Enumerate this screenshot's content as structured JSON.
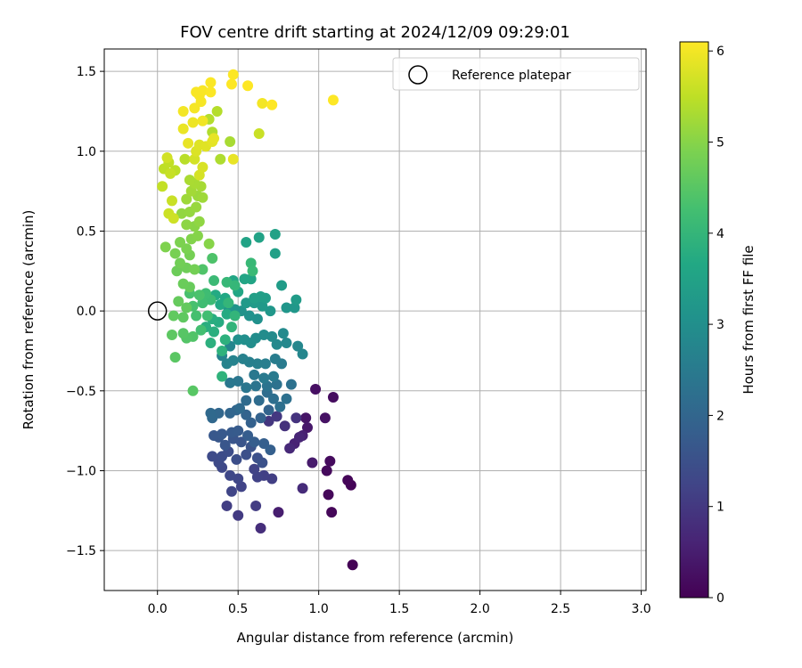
{
  "chart_data": {
    "type": "scatter",
    "title": "FOV centre drift starting at 2024/12/09 09:29:01",
    "xlabel": "Angular distance from reference (arcmin)",
    "ylabel": "Rotation from reference (arcmin)",
    "xlim": [
      -0.33,
      3.03
    ],
    "ylim": [
      -1.75,
      1.64
    ],
    "xticks": [
      0.0,
      0.5,
      1.0,
      1.5,
      2.0,
      2.5,
      3.0
    ],
    "xtick_labels": [
      "0.0",
      "0.5",
      "1.0",
      "1.5",
      "2.0",
      "2.5",
      "3.0"
    ],
    "yticks": [
      -1.5,
      -1.0,
      -0.5,
      0.0,
      0.5,
      1.0,
      1.5
    ],
    "ytick_labels": [
      "−1.5",
      "−1.0",
      "−0.5",
      "0.0",
      "0.5",
      "1.0",
      "1.5"
    ],
    "grid": true,
    "legend": {
      "position": "top-right",
      "entries": [
        "Reference platepar"
      ]
    },
    "reference_point": {
      "x": 0.0,
      "y": 0.0,
      "label": "Reference platepar"
    },
    "colorbar": {
      "label": "Hours from first FF file",
      "range": [
        0,
        6.1
      ],
      "ticks": [
        0,
        1,
        2,
        3,
        4,
        5,
        6
      ],
      "tick_labels": [
        "0",
        "1",
        "2",
        "3",
        "4",
        "5",
        "6"
      ],
      "colormap": "viridis"
    },
    "points": [
      {
        "x": 1.21,
        "y": -1.59,
        "c": 0.02
      },
      {
        "x": 1.2,
        "y": -1.09,
        "c": 0.05
      },
      {
        "x": 1.18,
        "y": -1.06,
        "c": 0.08
      },
      {
        "x": 1.08,
        "y": -1.26,
        "c": 0.1
      },
      {
        "x": 1.06,
        "y": -1.15,
        "c": 0.12
      },
      {
        "x": 1.05,
        "y": -1.0,
        "c": 0.15
      },
      {
        "x": 1.07,
        "y": -0.94,
        "c": 0.18
      },
      {
        "x": 1.09,
        "y": -0.54,
        "c": 0.2
      },
      {
        "x": 0.98,
        "y": -0.49,
        "c": 0.25
      },
      {
        "x": 1.04,
        "y": -0.67,
        "c": 0.3
      },
      {
        "x": 0.92,
        "y": -0.67,
        "c": 0.35
      },
      {
        "x": 0.93,
        "y": -0.73,
        "c": 0.4
      },
      {
        "x": 0.96,
        "y": -0.95,
        "c": 0.45
      },
      {
        "x": 0.75,
        "y": -1.26,
        "c": 0.5
      },
      {
        "x": 0.9,
        "y": -0.78,
        "c": 0.55
      },
      {
        "x": 0.85,
        "y": -0.83,
        "c": 0.6
      },
      {
        "x": 0.88,
        "y": -0.79,
        "c": 0.65
      },
      {
        "x": 0.82,
        "y": -0.86,
        "c": 0.7
      },
      {
        "x": 0.9,
        "y": -1.11,
        "c": 0.75
      },
      {
        "x": 0.64,
        "y": -1.36,
        "c": 0.8
      },
      {
        "x": 0.79,
        "y": -0.72,
        "c": 0.85
      },
      {
        "x": 0.86,
        "y": -0.67,
        "c": 0.9
      },
      {
        "x": 0.69,
        "y": -0.69,
        "c": 0.95
      },
      {
        "x": 0.74,
        "y": -0.66,
        "c": 1.0
      },
      {
        "x": 0.5,
        "y": -1.28,
        "c": 1.05
      },
      {
        "x": 0.61,
        "y": -1.22,
        "c": 1.08
      },
      {
        "x": 0.43,
        "y": -1.22,
        "c": 1.1
      },
      {
        "x": 0.71,
        "y": -1.05,
        "c": 1.12
      },
      {
        "x": 0.66,
        "y": -1.03,
        "c": 1.15
      },
      {
        "x": 0.62,
        "y": -1.04,
        "c": 1.18
      },
      {
        "x": 0.6,
        "y": -0.99,
        "c": 1.2
      },
      {
        "x": 0.52,
        "y": -1.1,
        "c": 1.22
      },
      {
        "x": 0.46,
        "y": -1.13,
        "c": 1.25
      },
      {
        "x": 0.5,
        "y": -1.05,
        "c": 1.28
      },
      {
        "x": 0.45,
        "y": -1.03,
        "c": 1.3
      },
      {
        "x": 0.4,
        "y": -0.98,
        "c": 1.32
      },
      {
        "x": 0.38,
        "y": -0.95,
        "c": 1.35
      },
      {
        "x": 0.34,
        "y": -0.91,
        "c": 1.38
      },
      {
        "x": 0.4,
        "y": -0.91,
        "c": 1.4
      },
      {
        "x": 0.44,
        "y": -0.88,
        "c": 1.42
      },
      {
        "x": 0.49,
        "y": -0.93,
        "c": 1.45
      },
      {
        "x": 0.55,
        "y": -0.9,
        "c": 1.48
      },
      {
        "x": 0.62,
        "y": -0.92,
        "c": 1.5
      },
      {
        "x": 0.65,
        "y": -0.95,
        "c": 1.52
      },
      {
        "x": 0.58,
        "y": -0.85,
        "c": 1.55
      },
      {
        "x": 0.52,
        "y": -0.82,
        "c": 1.58
      },
      {
        "x": 0.47,
        "y": -0.8,
        "c": 1.6
      },
      {
        "x": 0.42,
        "y": -0.84,
        "c": 1.62
      },
      {
        "x": 0.38,
        "y": -0.79,
        "c": 1.65
      },
      {
        "x": 0.35,
        "y": -0.78,
        "c": 1.68
      },
      {
        "x": 0.4,
        "y": -0.77,
        "c": 1.7
      },
      {
        "x": 0.46,
        "y": -0.76,
        "c": 1.72
      },
      {
        "x": 0.5,
        "y": -0.75,
        "c": 1.75
      },
      {
        "x": 0.56,
        "y": -0.78,
        "c": 1.78
      },
      {
        "x": 0.6,
        "y": -0.82,
        "c": 1.8
      },
      {
        "x": 0.66,
        "y": -0.83,
        "c": 1.82
      },
      {
        "x": 0.7,
        "y": -0.87,
        "c": 1.85
      },
      {
        "x": 0.58,
        "y": -0.7,
        "c": 1.88
      },
      {
        "x": 0.64,
        "y": -0.67,
        "c": 1.9
      },
      {
        "x": 0.69,
        "y": -0.62,
        "c": 1.92
      },
      {
        "x": 0.55,
        "y": -0.65,
        "c": 1.95
      },
      {
        "x": 0.49,
        "y": -0.62,
        "c": 1.98
      },
      {
        "x": 0.45,
        "y": -0.64,
        "c": 2.0
      },
      {
        "x": 0.38,
        "y": -0.64,
        "c": 2.02
      },
      {
        "x": 0.34,
        "y": -0.67,
        "c": 2.05
      },
      {
        "x": 0.33,
        "y": -0.64,
        "c": 2.08
      },
      {
        "x": 0.51,
        "y": -0.61,
        "c": 2.1
      },
      {
        "x": 0.55,
        "y": -0.56,
        "c": 2.12
      },
      {
        "x": 0.63,
        "y": -0.56,
        "c": 2.15
      },
      {
        "x": 0.68,
        "y": -0.51,
        "c": 2.18
      },
      {
        "x": 0.72,
        "y": -0.55,
        "c": 2.2
      },
      {
        "x": 0.76,
        "y": -0.6,
        "c": 2.22
      },
      {
        "x": 0.8,
        "y": -0.55,
        "c": 2.25
      },
      {
        "x": 0.83,
        "y": -0.46,
        "c": 2.28
      },
      {
        "x": 0.74,
        "y": -0.46,
        "c": 2.3
      },
      {
        "x": 0.68,
        "y": -0.47,
        "c": 2.32
      },
      {
        "x": 0.61,
        "y": -0.47,
        "c": 2.35
      },
      {
        "x": 0.55,
        "y": -0.48,
        "c": 2.38
      },
      {
        "x": 0.5,
        "y": -0.44,
        "c": 2.4
      },
      {
        "x": 0.45,
        "y": -0.45,
        "c": 2.42
      },
      {
        "x": 0.6,
        "y": -0.4,
        "c": 2.45
      },
      {
        "x": 0.66,
        "y": -0.42,
        "c": 2.48
      },
      {
        "x": 0.72,
        "y": -0.41,
        "c": 2.5
      },
      {
        "x": 0.77,
        "y": -0.33,
        "c": 2.52
      },
      {
        "x": 0.73,
        "y": -0.3,
        "c": 2.55
      },
      {
        "x": 0.67,
        "y": -0.33,
        "c": 2.58
      },
      {
        "x": 0.62,
        "y": -0.33,
        "c": 2.6
      },
      {
        "x": 0.57,
        "y": -0.32,
        "c": 2.62
      },
      {
        "x": 0.53,
        "y": -0.3,
        "c": 2.65
      },
      {
        "x": 0.47,
        "y": -0.31,
        "c": 2.68
      },
      {
        "x": 0.43,
        "y": -0.33,
        "c": 2.7
      },
      {
        "x": 0.4,
        "y": -0.28,
        "c": 2.72
      },
      {
        "x": 0.45,
        "y": -0.22,
        "c": 2.75
      },
      {
        "x": 0.9,
        "y": -0.27,
        "c": 2.78
      },
      {
        "x": 0.87,
        "y": -0.22,
        "c": 2.8
      },
      {
        "x": 0.8,
        "y": -0.2,
        "c": 2.82
      },
      {
        "x": 0.74,
        "y": -0.21,
        "c": 2.85
      },
      {
        "x": 0.78,
        "y": -0.14,
        "c": 2.88
      },
      {
        "x": 0.71,
        "y": -0.16,
        "c": 2.9
      },
      {
        "x": 0.66,
        "y": -0.15,
        "c": 2.92
      },
      {
        "x": 0.61,
        "y": -0.17,
        "c": 2.95
      },
      {
        "x": 0.58,
        "y": -0.2,
        "c": 2.98
      },
      {
        "x": 0.54,
        "y": -0.18,
        "c": 3.0
      },
      {
        "x": 0.5,
        "y": -0.18,
        "c": 3.02
      },
      {
        "x": 0.62,
        "y": -0.05,
        "c": 3.05
      },
      {
        "x": 0.57,
        "y": -0.03,
        "c": 3.08
      },
      {
        "x": 0.52,
        "y": 0.0,
        "c": 3.1
      },
      {
        "x": 0.48,
        "y": 0.01,
        "c": 3.12
      },
      {
        "x": 0.44,
        "y": 0.0,
        "c": 3.15
      },
      {
        "x": 0.8,
        "y": 0.02,
        "c": 3.18
      },
      {
        "x": 0.85,
        "y": 0.02,
        "c": 3.2
      },
      {
        "x": 0.7,
        "y": 0.0,
        "c": 3.22
      },
      {
        "x": 0.65,
        "y": 0.03,
        "c": 3.25
      },
      {
        "x": 0.6,
        "y": 0.05,
        "c": 3.28
      },
      {
        "x": 0.55,
        "y": 0.05,
        "c": 3.3
      },
      {
        "x": 0.86,
        "y": 0.07,
        "c": 3.32
      },
      {
        "x": 0.77,
        "y": 0.16,
        "c": 3.35
      },
      {
        "x": 0.67,
        "y": 0.08,
        "c": 3.38
      },
      {
        "x": 0.64,
        "y": 0.09,
        "c": 3.4
      },
      {
        "x": 0.6,
        "y": 0.08,
        "c": 3.42
      },
      {
        "x": 0.73,
        "y": 0.36,
        "c": 3.45
      },
      {
        "x": 0.73,
        "y": 0.48,
        "c": 3.48
      },
      {
        "x": 0.63,
        "y": 0.46,
        "c": 3.5
      },
      {
        "x": 0.55,
        "y": 0.43,
        "c": 3.52
      },
      {
        "x": 0.58,
        "y": 0.2,
        "c": 3.55
      },
      {
        "x": 0.54,
        "y": 0.2,
        "c": 3.58
      },
      {
        "x": 0.5,
        "y": 0.12,
        "c": 3.6
      },
      {
        "x": 0.47,
        "y": 0.19,
        "c": 3.62
      },
      {
        "x": 0.42,
        "y": 0.08,
        "c": 3.65
      },
      {
        "x": 0.39,
        "y": 0.04,
        "c": 3.68
      },
      {
        "x": 0.36,
        "y": 0.1,
        "c": 3.7
      },
      {
        "x": 0.43,
        "y": -0.02,
        "c": 3.72
      },
      {
        "x": 0.38,
        "y": -0.07,
        "c": 3.75
      },
      {
        "x": 0.34,
        "y": -0.05,
        "c": 3.78
      },
      {
        "x": 0.3,
        "y": -0.1,
        "c": 3.8
      },
      {
        "x": 0.35,
        "y": -0.13,
        "c": 3.82
      },
      {
        "x": 0.33,
        "y": -0.2,
        "c": 3.85
      },
      {
        "x": 0.42,
        "y": -0.18,
        "c": 3.88
      },
      {
        "x": 0.4,
        "y": -0.25,
        "c": 3.9
      },
      {
        "x": 0.4,
        "y": -0.41,
        "c": 3.92
      },
      {
        "x": 0.46,
        "y": -0.1,
        "c": 3.95
      },
      {
        "x": 0.48,
        "y": -0.03,
        "c": 3.98
      },
      {
        "x": 0.44,
        "y": 0.05,
        "c": 4.0
      },
      {
        "x": 0.48,
        "y": 0.16,
        "c": 4.02
      },
      {
        "x": 0.43,
        "y": 0.18,
        "c": 4.05
      },
      {
        "x": 0.58,
        "y": 0.3,
        "c": 4.08
      },
      {
        "x": 0.59,
        "y": 0.25,
        "c": 4.1
      },
      {
        "x": 0.35,
        "y": 0.19,
        "c": 4.12
      },
      {
        "x": 0.33,
        "y": 0.07,
        "c": 4.15
      },
      {
        "x": 0.3,
        "y": 0.11,
        "c": 4.18
      },
      {
        "x": 0.28,
        "y": 0.05,
        "c": 4.2
      },
      {
        "x": 0.31,
        "y": -0.03,
        "c": 4.22
      },
      {
        "x": 0.27,
        "y": -0.12,
        "c": 4.25
      },
      {
        "x": 0.24,
        "y": -0.03,
        "c": 4.28
      },
      {
        "x": 0.22,
        "y": 0.03,
        "c": 4.3
      },
      {
        "x": 0.2,
        "y": 0.11,
        "c": 4.32
      },
      {
        "x": 0.26,
        "y": 0.1,
        "c": 4.35
      },
      {
        "x": 0.34,
        "y": 0.33,
        "c": 4.38
      },
      {
        "x": 0.28,
        "y": 0.26,
        "c": 4.4
      },
      {
        "x": 0.22,
        "y": -0.16,
        "c": 4.42
      },
      {
        "x": 0.18,
        "y": -0.17,
        "c": 4.45
      },
      {
        "x": 0.16,
        "y": -0.14,
        "c": 4.48
      },
      {
        "x": 0.22,
        "y": -0.5,
        "c": 4.5
      },
      {
        "x": 0.11,
        "y": -0.29,
        "c": 4.52
      },
      {
        "x": 0.09,
        "y": -0.15,
        "c": 4.55
      },
      {
        "x": 0.16,
        "y": -0.04,
        "c": 4.58
      },
      {
        "x": 0.1,
        "y": -0.03,
        "c": 4.6
      },
      {
        "x": 0.18,
        "y": 0.02,
        "c": 4.62
      },
      {
        "x": 0.13,
        "y": 0.06,
        "c": 4.65
      },
      {
        "x": 0.2,
        "y": 0.15,
        "c": 4.68
      },
      {
        "x": 0.16,
        "y": 0.17,
        "c": 4.7
      },
      {
        "x": 0.12,
        "y": 0.25,
        "c": 4.72
      },
      {
        "x": 0.18,
        "y": 0.27,
        "c": 4.75
      },
      {
        "x": 0.14,
        "y": 0.3,
        "c": 4.78
      },
      {
        "x": 0.23,
        "y": 0.26,
        "c": 4.8
      },
      {
        "x": 0.2,
        "y": 0.35,
        "c": 4.82
      },
      {
        "x": 0.11,
        "y": 0.36,
        "c": 4.85
      },
      {
        "x": 0.18,
        "y": 0.39,
        "c": 4.88
      },
      {
        "x": 0.14,
        "y": 0.43,
        "c": 4.9
      },
      {
        "x": 0.05,
        "y": 0.4,
        "c": 4.92
      },
      {
        "x": 0.21,
        "y": 0.45,
        "c": 4.95
      },
      {
        "x": 0.25,
        "y": 0.47,
        "c": 4.98
      },
      {
        "x": 0.32,
        "y": 0.42,
        "c": 5.0
      },
      {
        "x": 0.23,
        "y": 0.53,
        "c": 5.02
      },
      {
        "x": 0.18,
        "y": 0.54,
        "c": 5.05
      },
      {
        "x": 0.26,
        "y": 0.56,
        "c": 5.08
      },
      {
        "x": 0.15,
        "y": 0.61,
        "c": 5.1
      },
      {
        "x": 0.2,
        "y": 0.62,
        "c": 5.12
      },
      {
        "x": 0.24,
        "y": 0.65,
        "c": 5.15
      },
      {
        "x": 0.25,
        "y": 0.72,
        "c": 5.18
      },
      {
        "x": 0.18,
        "y": 0.7,
        "c": 5.2
      },
      {
        "x": 0.28,
        "y": 0.71,
        "c": 5.22
      },
      {
        "x": 0.21,
        "y": 0.75,
        "c": 5.25
      },
      {
        "x": 0.27,
        "y": 0.78,
        "c": 5.28
      },
      {
        "x": 0.23,
        "y": 0.8,
        "c": 5.3
      },
      {
        "x": 0.2,
        "y": 0.82,
        "c": 5.32
      },
      {
        "x": 0.39,
        "y": 0.95,
        "c": 5.35
      },
      {
        "x": 0.34,
        "y": 1.12,
        "c": 5.38
      },
      {
        "x": 0.32,
        "y": 1.2,
        "c": 5.4
      },
      {
        "x": 0.37,
        "y": 1.25,
        "c": 5.42
      },
      {
        "x": 0.17,
        "y": 0.95,
        "c": 5.45
      },
      {
        "x": 0.11,
        "y": 0.88,
        "c": 5.48
      },
      {
        "x": 0.04,
        "y": 0.89,
        "c": 5.5
      },
      {
        "x": 0.07,
        "y": 0.93,
        "c": 5.52
      },
      {
        "x": 0.03,
        "y": 0.78,
        "c": 5.55
      },
      {
        "x": 0.08,
        "y": 0.86,
        "c": 5.58
      },
      {
        "x": 0.09,
        "y": 0.69,
        "c": 5.6
      },
      {
        "x": 0.07,
        "y": 0.61,
        "c": 5.62
      },
      {
        "x": 0.1,
        "y": 0.58,
        "c": 5.65
      },
      {
        "x": 0.06,
        "y": 0.96,
        "c": 5.68
      },
      {
        "x": 0.23,
        "y": 0.95,
        "c": 5.7
      },
      {
        "x": 0.26,
        "y": 0.85,
        "c": 5.72
      },
      {
        "x": 0.28,
        "y": 0.9,
        "c": 5.75
      },
      {
        "x": 0.24,
        "y": 1.0,
        "c": 5.78
      },
      {
        "x": 0.26,
        "y": 1.04,
        "c": 5.8
      },
      {
        "x": 0.3,
        "y": 1.03,
        "c": 5.82
      },
      {
        "x": 0.34,
        "y": 1.06,
        "c": 5.85
      },
      {
        "x": 0.35,
        "y": 1.08,
        "c": 5.88
      },
      {
        "x": 0.19,
        "y": 1.05,
        "c": 5.9
      },
      {
        "x": 0.16,
        "y": 1.14,
        "c": 5.92
      },
      {
        "x": 0.22,
        "y": 1.18,
        "c": 5.95
      },
      {
        "x": 0.28,
        "y": 1.19,
        "c": 5.98
      },
      {
        "x": 0.16,
        "y": 1.25,
        "c": 6.0
      },
      {
        "x": 0.23,
        "y": 1.27,
        "c": 6.02
      },
      {
        "x": 0.27,
        "y": 1.31,
        "c": 6.03
      },
      {
        "x": 0.26,
        "y": 1.35,
        "c": 6.04
      },
      {
        "x": 0.24,
        "y": 1.37,
        "c": 6.05
      },
      {
        "x": 0.28,
        "y": 1.38,
        "c": 6.06
      },
      {
        "x": 0.33,
        "y": 1.43,
        "c": 6.07
      },
      {
        "x": 0.33,
        "y": 1.37,
        "c": 6.08
      },
      {
        "x": 0.47,
        "y": 1.48,
        "c": 6.09
      },
      {
        "x": 0.46,
        "y": 1.42,
        "c": 6.1
      },
      {
        "x": 0.56,
        "y": 1.41,
        "c": 6.1
      },
      {
        "x": 0.45,
        "y": 1.06,
        "c": 5.3
      },
      {
        "x": 0.63,
        "y": 1.11,
        "c": 5.6
      },
      {
        "x": 0.65,
        "y": 1.3,
        "c": 6.0
      },
      {
        "x": 0.71,
        "y": 1.29,
        "c": 6.1
      },
      {
        "x": 1.09,
        "y": 1.32,
        "c": 6.1
      },
      {
        "x": 0.47,
        "y": 0.95,
        "c": 5.9
      }
    ]
  }
}
